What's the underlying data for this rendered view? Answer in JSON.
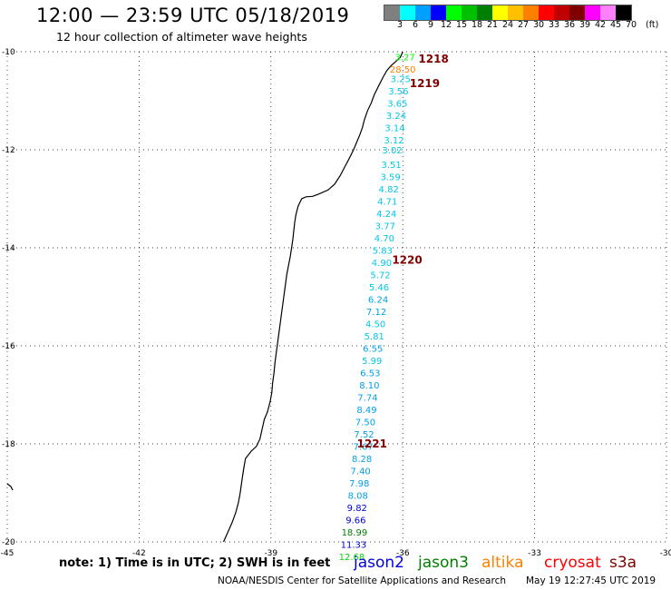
{
  "header": {
    "title": "12:00 — 23:59 UTC 05/18/2019",
    "subtitle": "12 hour collection of altimeter wave heights"
  },
  "colorbar": {
    "colors": [
      "#7f7f7f",
      "#00ffff",
      "#00a0ff",
      "#0000ff",
      "#00ff00",
      "#00c000",
      "#008000",
      "#ffff00",
      "#ffc000",
      "#ff8000",
      "#ff0000",
      "#c00000",
      "#800000",
      "#ff00ff",
      "#ff80ff",
      "#000000"
    ],
    "labels": [
      "3",
      "6",
      "9",
      "12",
      "15",
      "18",
      "21",
      "24",
      "27",
      "30",
      "33",
      "36",
      "39",
      "42",
      "45",
      "70"
    ],
    "unit": "(ft)"
  },
  "map": {
    "lat_labels": [
      "-10",
      "-12",
      "-14",
      "-16",
      "-18",
      "-20"
    ],
    "lon_labels": [
      "-45",
      "-42",
      "-39",
      "-36",
      "-33",
      "-30"
    ],
    "readings": [
      {
        "value": "3.27",
        "color": "#00ff00",
        "lat": -10.1,
        "lon": -35.95
      },
      {
        "value": "28.50",
        "color": "#ff8000",
        "lat": -10.35,
        "lon": -36.0
      },
      {
        "value": "3.25",
        "color": "#00c8e8",
        "lat": -10.55,
        "lon": -36.05
      },
      {
        "value": "3.56",
        "color": "#00c8e8",
        "lat": -10.8,
        "lon": -36.1
      },
      {
        "value": "3.65",
        "color": "#00c8e8",
        "lat": -11.05,
        "lon": -36.12
      },
      {
        "value": "3.24",
        "color": "#00c8e8",
        "lat": -11.3,
        "lon": -36.15
      },
      {
        "value": "3.14",
        "color": "#00c8e8",
        "lat": -11.55,
        "lon": -36.18
      },
      {
        "value": "3.12",
        "color": "#00c8e8",
        "lat": -11.8,
        "lon": -36.2
      },
      {
        "value": "3.02",
        "color": "#00c8e8",
        "lat": -12.0,
        "lon": -36.24
      },
      {
        "value": "3.51",
        "color": "#00c8e8",
        "lat": -12.3,
        "lon": -36.26
      },
      {
        "value": "3.59",
        "color": "#00c8e8",
        "lat": -12.55,
        "lon": -36.28
      },
      {
        "value": "4.82",
        "color": "#00c8e8",
        "lat": -12.8,
        "lon": -36.32
      },
      {
        "value": "4.71",
        "color": "#00c8e8",
        "lat": -13.05,
        "lon": -36.35
      },
      {
        "value": "4.24",
        "color": "#00c8e8",
        "lat": -13.3,
        "lon": -36.37
      },
      {
        "value": "3.77",
        "color": "#00c8e8",
        "lat": -13.55,
        "lon": -36.4
      },
      {
        "value": "4.70",
        "color": "#00c8e8",
        "lat": -13.8,
        "lon": -36.42
      },
      {
        "value": "5.83",
        "color": "#00c8e8",
        "lat": -14.05,
        "lon": -36.46
      },
      {
        "value": "4.90",
        "color": "#00c8e8",
        "lat": -14.3,
        "lon": -36.48
      },
      {
        "value": "5.72",
        "color": "#00c8e8",
        "lat": -14.55,
        "lon": -36.51
      },
      {
        "value": "5.46",
        "color": "#00c8e8",
        "lat": -14.8,
        "lon": -36.54
      },
      {
        "value": "6.24",
        "color": "#00a0e8",
        "lat": -15.05,
        "lon": -36.56
      },
      {
        "value": "7.12",
        "color": "#00a0e8",
        "lat": -15.3,
        "lon": -36.6
      },
      {
        "value": "4.50",
        "color": "#00c8e8",
        "lat": -15.55,
        "lon": -36.62
      },
      {
        "value": "5.81",
        "color": "#00c8e8",
        "lat": -15.8,
        "lon": -36.65
      },
      {
        "value": "6.55",
        "color": "#00a0e8",
        "lat": -16.05,
        "lon": -36.68
      },
      {
        "value": "5.99",
        "color": "#00c8e8",
        "lat": -16.3,
        "lon": -36.7
      },
      {
        "value": "6.53",
        "color": "#00a0e8",
        "lat": -16.55,
        "lon": -36.74
      },
      {
        "value": "8.10",
        "color": "#00a0e8",
        "lat": -16.8,
        "lon": -36.76
      },
      {
        "value": "7.74",
        "color": "#00a0e8",
        "lat": -17.05,
        "lon": -36.8
      },
      {
        "value": "8.49",
        "color": "#00a0e8",
        "lat": -17.3,
        "lon": -36.82
      },
      {
        "value": "7.50",
        "color": "#00a0e8",
        "lat": -17.55,
        "lon": -36.85
      },
      {
        "value": "7.52",
        "color": "#00a0e8",
        "lat": -17.8,
        "lon": -36.88
      },
      {
        "value": "7.67",
        "color": "#00a0e8",
        "lat": -18.05,
        "lon": -36.9
      },
      {
        "value": "8.28",
        "color": "#00a0e8",
        "lat": -18.3,
        "lon": -36.93
      },
      {
        "value": "7.40",
        "color": "#00a0e8",
        "lat": -18.55,
        "lon": -36.96
      },
      {
        "value": "7.98",
        "color": "#00a0e8",
        "lat": -18.8,
        "lon": -36.99
      },
      {
        "value": "8.08",
        "color": "#00a0e8",
        "lat": -19.05,
        "lon": -37.02
      },
      {
        "value": "9.82",
        "color": "#0000e0",
        "lat": -19.3,
        "lon": -37.04
      },
      {
        "value": "9.66",
        "color": "#0000e0",
        "lat": -19.55,
        "lon": -37.07
      },
      {
        "value": "18.99",
        "color": "#008000",
        "lat": -19.8,
        "lon": -37.1
      },
      {
        "value": "11.33",
        "color": "#0000e0",
        "lat": -20.05,
        "lon": -37.12
      },
      {
        "value": "12.68",
        "color": "#00d800",
        "lat": -20.3,
        "lon": -37.16
      }
    ],
    "times": [
      {
        "value": "1218",
        "lat": -10.15,
        "lon": -35.3
      },
      {
        "value": "1219",
        "lat": -10.65,
        "lon": -35.5
      },
      {
        "value": "1220",
        "lat": -14.25,
        "lon": -35.9
      },
      {
        "value": "1221",
        "lat": -18.0,
        "lon": -36.7
      }
    ]
  },
  "legend": {
    "note": "note: 1) Time is in UTC; 2) SWH is in feet",
    "satellites": [
      {
        "name": "jason2",
        "color": "#0000e0"
      },
      {
        "name": "jason3",
        "color": "#008000"
      },
      {
        "name": "altika",
        "color": "#ff8000"
      },
      {
        "name": "cryosat",
        "color": "#ff0000"
      },
      {
        "name": "s3a",
        "color": "#800000"
      }
    ]
  },
  "footer": {
    "credit": "NOAA/NESDIS Center for Satellite Applications and Research",
    "timestamp": "May 19 12:27:45 UTC 2019"
  }
}
